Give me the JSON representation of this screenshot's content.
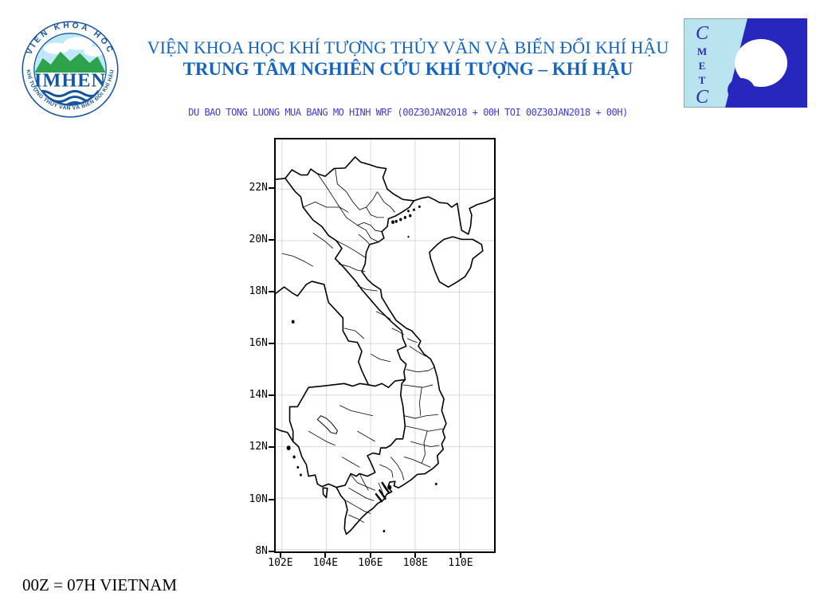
{
  "header": {
    "line1": "VIỆN KHOA HỌC KHÍ TƯỢNG THỦY VĂN VÀ BIẾN ĐỔI KHÍ HẬU",
    "line2": "TRUNG TÂM NGHIÊN CỨU KHÍ TƯỢNG – KHÍ HẬU",
    "color": "#1565c0"
  },
  "forecast_title": {
    "text": "DU BAO TONG LUONG MUA BANG MO HINH WRF (00Z30JAN2018 + 00H TOI 00Z30JAN2018 + 00H)",
    "color": "#3c3cd0"
  },
  "imhen_logo": {
    "arc_top": "VIEN KHOA HOC",
    "arc_bottom": "KHÍ TƯỢNG THỦY VĂN VÀ BIẾN ĐỔI KHÍ HẬU",
    "acronym": "IMHEN",
    "blue": "#15549e",
    "sky": "#bfe9f8",
    "green": "#2fa24c"
  },
  "cmetc_logo": {
    "letters": [
      "C",
      "M",
      "E",
      "T",
      "C"
    ],
    "light": "#b9e3ef",
    "dark": "#2727bd"
  },
  "map": {
    "lat_tick_values": [
      22,
      20,
      18,
      16,
      14,
      12,
      10,
      8
    ],
    "lat_tick_labels": [
      "22N",
      "20N",
      "18N",
      "16N",
      "14N",
      "12N",
      "10N",
      "8N"
    ],
    "lon_tick_values": [
      102,
      104,
      106,
      108,
      110
    ],
    "lon_tick_labels": [
      "102E",
      "104E",
      "106E",
      "108E",
      "110E"
    ],
    "lat_range": [
      7.93,
      23.93
    ],
    "lon_range": [
      101.72,
      111.56
    ]
  },
  "footer": {
    "text": "00Z = 07H VIETNAM"
  }
}
